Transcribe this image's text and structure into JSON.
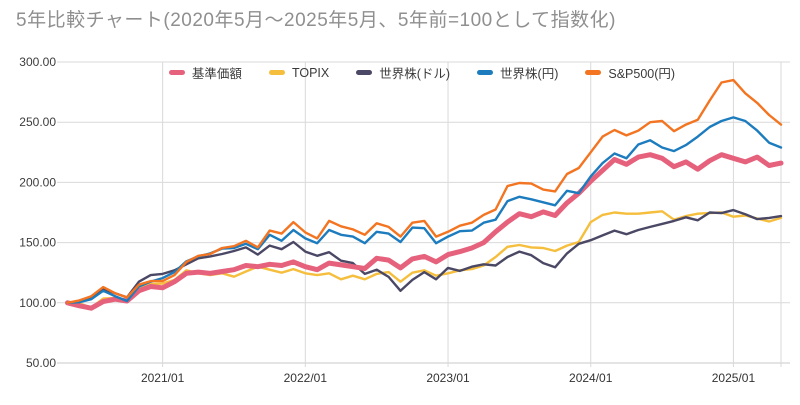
{
  "page": {
    "title": "5年比較チャート(2020年5月〜2025年5月、5年前=100として指数化)"
  },
  "chart_data": {
    "type": "line",
    "title": "5年比較チャート(2020年5月〜2025年5月、5年前=100として指数化)",
    "x_start": "2020/05",
    "x_end": "2025/05",
    "x_interval": "month",
    "x_tick_labels": [
      "2021/01",
      "2022/01",
      "2023/01",
      "2024/01",
      "2025/01"
    ],
    "x_tick_month_indices": [
      8,
      20,
      32,
      44,
      56
    ],
    "y_min": 50,
    "y_max": 300,
    "y_tick_labels": [
      "300.00",
      "250.00",
      "200.00",
      "150.00",
      "100.00",
      "50.00"
    ],
    "y_tick_values": [
      300,
      250,
      200,
      150,
      100,
      50
    ],
    "grid": true,
    "legend_position": "top-center",
    "series": [
      {
        "name": "基準価額",
        "color": "#E5617C",
        "width": 5,
        "values": [
          100,
          97.5,
          95.5,
          101,
          103,
          101.5,
          110,
          113.5,
          112.5,
          117.5,
          124.5,
          125.5,
          124.5,
          126,
          127.5,
          131,
          130,
          132,
          131,
          134,
          130,
          127.5,
          133,
          131.5,
          130,
          128.5,
          137,
          135.5,
          129,
          136.5,
          138.5,
          134,
          140,
          142.5,
          145.5,
          150,
          159,
          167,
          174,
          171.5,
          175.5,
          172.5,
          183,
          191,
          201,
          210,
          219,
          215,
          221,
          223,
          220,
          213,
          217,
          211,
          218,
          223,
          220,
          217,
          221,
          214,
          216
        ]
      },
      {
        "name": "TOPIX",
        "color": "#F5BE3D",
        "width": 2.4,
        "values": [
          100,
          99.5,
          96,
          103.5,
          104,
          101,
          112,
          115.5,
          116,
          119,
          127,
          124.5,
          123,
          124.5,
          121.7,
          126,
          130,
          127.5,
          125,
          128,
          124.5,
          123,
          124.5,
          119.5,
          122.5,
          119.5,
          124,
          125.5,
          117.5,
          125,
          127,
          122.5,
          124.5,
          127,
          128,
          131,
          138,
          146.5,
          148,
          146,
          145.5,
          143,
          147.5,
          150.5,
          167,
          173,
          175,
          174,
          174,
          175,
          176,
          169,
          172,
          174,
          174.5,
          175,
          171.5,
          172.5,
          170,
          167.5,
          170.5
        ]
      },
      {
        "name": "世界株(ドル)",
        "color": "#4B4865",
        "width": 2.4,
        "values": [
          100,
          100.5,
          105,
          111.5,
          108,
          104.5,
          117.5,
          123,
          124,
          127,
          132,
          137,
          138.5,
          140.5,
          143,
          146,
          140,
          147.5,
          144.5,
          150.5,
          142.5,
          139,
          142,
          135,
          133,
          124,
          127.5,
          121.5,
          110,
          119,
          125.5,
          119.5,
          129,
          126.5,
          130,
          132,
          131,
          138,
          142.5,
          139.5,
          133,
          129.5,
          141,
          149,
          152,
          156,
          160,
          157,
          160.5,
          163,
          165.5,
          168,
          171,
          168.5,
          175,
          174.5,
          177,
          173.5,
          169.5,
          170.5,
          172
        ]
      },
      {
        "name": "世界株(円)",
        "color": "#1C7CBE",
        "width": 2.4,
        "values": [
          100,
          100.5,
          103,
          110,
          105.5,
          101.5,
          113.5,
          117.5,
          120.5,
          125.5,
          134.5,
          138.5,
          141,
          145,
          145.5,
          149,
          144.5,
          156.5,
          151.5,
          160.5,
          153.5,
          149.5,
          160.5,
          156.5,
          155,
          149.5,
          159,
          157.5,
          150.5,
          162.5,
          162,
          149.5,
          155,
          159.5,
          160,
          166.5,
          169,
          184.5,
          188,
          186,
          183.5,
          181,
          193,
          191,
          205,
          216,
          224,
          220,
          231.5,
          235,
          229,
          226,
          231,
          238,
          246,
          251,
          254,
          251,
          243,
          233,
          229
        ]
      },
      {
        "name": "S&P500(円)",
        "color": "#F37421",
        "width": 2.4,
        "values": [
          100,
          102,
          105.5,
          113,
          108,
          104.5,
          115,
          118,
          118,
          123,
          134,
          139,
          140.5,
          145.5,
          147,
          151.5,
          146,
          160,
          157.5,
          167,
          158.5,
          153.5,
          168,
          163.5,
          161,
          156.5,
          166,
          163,
          155,
          166.5,
          168,
          155,
          159,
          164,
          166.5,
          173,
          177.5,
          197,
          199.5,
          199,
          194,
          192.5,
          207,
          212,
          225,
          238,
          243.5,
          239,
          243,
          250,
          251,
          242.5,
          248,
          252,
          268,
          283,
          285,
          274,
          266,
          256,
          248
        ]
      }
    ],
    "colors": {
      "grid": "#d9d9d9",
      "axis": "#c9c9c9",
      "title_text": "#8f8f8f",
      "axis_text": "#3c3c3c"
    }
  }
}
